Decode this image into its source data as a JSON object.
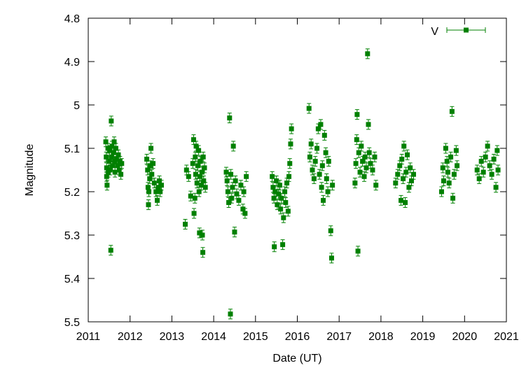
{
  "chart_data": {
    "type": "scatter",
    "xlabel": "Date (UT)",
    "ylabel": "Magnitude",
    "xlim": [
      2011,
      2021
    ],
    "ylim": [
      4.8,
      5.5
    ],
    "y_inverted": true,
    "grid": false,
    "legend_position": "top-right",
    "x_ticks": [
      "2011",
      "2012",
      "2013",
      "2014",
      "2015",
      "2016",
      "2017",
      "2018",
      "2019",
      "2020",
      "2021"
    ],
    "y_ticks": [
      "4.8",
      "4.9",
      "5",
      "5.1",
      "5.2",
      "5.3",
      "5.4",
      "5.5"
    ],
    "series": [
      {
        "name": "V",
        "color": "#008000",
        "marker": "square",
        "error_bars": true,
        "points": [
          {
            "x": 2011.42,
            "y": 5.085
          },
          {
            "x": 2011.43,
            "y": 5.12
          },
          {
            "x": 2011.44,
            "y": 5.145
          },
          {
            "x": 2011.44,
            "y": 5.165
          },
          {
            "x": 2011.45,
            "y": 5.185
          },
          {
            "x": 2011.47,
            "y": 5.1
          },
          {
            "x": 2011.48,
            "y": 5.155
          },
          {
            "x": 2011.5,
            "y": 5.13
          },
          {
            "x": 2011.51,
            "y": 5.105
          },
          {
            "x": 2011.52,
            "y": 5.15
          },
          {
            "x": 2011.54,
            "y": 5.335
          },
          {
            "x": 2011.55,
            "y": 5.037
          },
          {
            "x": 2011.56,
            "y": 5.12
          },
          {
            "x": 2011.57,
            "y": 5.095
          },
          {
            "x": 2011.58,
            "y": 5.14
          },
          {
            "x": 2011.6,
            "y": 5.11
          },
          {
            "x": 2011.62,
            "y": 5.085
          },
          {
            "x": 2011.63,
            "y": 5.13
          },
          {
            "x": 2011.64,
            "y": 5.155
          },
          {
            "x": 2011.66,
            "y": 5.1
          },
          {
            "x": 2011.68,
            "y": 5.125
          },
          {
            "x": 2011.7,
            "y": 5.14
          },
          {
            "x": 2011.72,
            "y": 5.115
          },
          {
            "x": 2011.74,
            "y": 5.15
          },
          {
            "x": 2011.76,
            "y": 5.13
          },
          {
            "x": 2011.78,
            "y": 5.16
          },
          {
            "x": 2011.8,
            "y": 5.135
          },
          {
            "x": 2012.4,
            "y": 5.125
          },
          {
            "x": 2012.42,
            "y": 5.15
          },
          {
            "x": 2012.43,
            "y": 5.19
          },
          {
            "x": 2012.44,
            "y": 5.23
          },
          {
            "x": 2012.45,
            "y": 5.2
          },
          {
            "x": 2012.47,
            "y": 5.17
          },
          {
            "x": 2012.48,
            "y": 5.14
          },
          {
            "x": 2012.5,
            "y": 5.1
          },
          {
            "x": 2012.52,
            "y": 5.16
          },
          {
            "x": 2012.55,
            "y": 5.135
          },
          {
            "x": 2012.58,
            "y": 5.18
          },
          {
            "x": 2012.62,
            "y": 5.2
          },
          {
            "x": 2012.65,
            "y": 5.22
          },
          {
            "x": 2012.68,
            "y": 5.19
          },
          {
            "x": 2012.7,
            "y": 5.175
          },
          {
            "x": 2012.72,
            "y": 5.2
          },
          {
            "x": 2012.75,
            "y": 5.185
          },
          {
            "x": 2013.32,
            "y": 5.275
          },
          {
            "x": 2013.35,
            "y": 5.15
          },
          {
            "x": 2013.4,
            "y": 5.165
          },
          {
            "x": 2013.45,
            "y": 5.21
          },
          {
            "x": 2013.5,
            "y": 5.135
          },
          {
            "x": 2013.52,
            "y": 5.08
          },
          {
            "x": 2013.53,
            "y": 5.25
          },
          {
            "x": 2013.55,
            "y": 5.215
          },
          {
            "x": 2013.56,
            "y": 5.12
          },
          {
            "x": 2013.57,
            "y": 5.16
          },
          {
            "x": 2013.58,
            "y": 5.095
          },
          {
            "x": 2013.6,
            "y": 5.18
          },
          {
            "x": 2013.62,
            "y": 5.14
          },
          {
            "x": 2013.64,
            "y": 5.105
          },
          {
            "x": 2013.65,
            "y": 5.2
          },
          {
            "x": 2013.66,
            "y": 5.295
          },
          {
            "x": 2013.67,
            "y": 5.165
          },
          {
            "x": 2013.68,
            "y": 5.13
          },
          {
            "x": 2013.7,
            "y": 5.185
          },
          {
            "x": 2013.72,
            "y": 5.155
          },
          {
            "x": 2013.73,
            "y": 5.3
          },
          {
            "x": 2013.74,
            "y": 5.34
          },
          {
            "x": 2013.75,
            "y": 5.12
          },
          {
            "x": 2013.76,
            "y": 5.175
          },
          {
            "x": 2013.78,
            "y": 5.145
          },
          {
            "x": 2013.8,
            "y": 5.19
          },
          {
            "x": 2014.3,
            "y": 5.155
          },
          {
            "x": 2014.32,
            "y": 5.175
          },
          {
            "x": 2014.34,
            "y": 5.2
          },
          {
            "x": 2014.36,
            "y": 5.225
          },
          {
            "x": 2014.38,
            "y": 5.03
          },
          {
            "x": 2014.4,
            "y": 5.482
          },
          {
            "x": 2014.41,
            "y": 5.16
          },
          {
            "x": 2014.43,
            "y": 5.215
          },
          {
            "x": 2014.45,
            "y": 5.19
          },
          {
            "x": 2014.47,
            "y": 5.095
          },
          {
            "x": 2014.5,
            "y": 5.293
          },
          {
            "x": 2014.52,
            "y": 5.175
          },
          {
            "x": 2014.55,
            "y": 5.205
          },
          {
            "x": 2014.6,
            "y": 5.22
          },
          {
            "x": 2014.65,
            "y": 5.185
          },
          {
            "x": 2014.7,
            "y": 5.24
          },
          {
            "x": 2014.72,
            "y": 5.2
          },
          {
            "x": 2014.75,
            "y": 5.25
          },
          {
            "x": 2014.78,
            "y": 5.165
          },
          {
            "x": 2015.4,
            "y": 5.165
          },
          {
            "x": 2015.42,
            "y": 5.19
          },
          {
            "x": 2015.44,
            "y": 5.215
          },
          {
            "x": 2015.45,
            "y": 5.327
          },
          {
            "x": 2015.47,
            "y": 5.2
          },
          {
            "x": 2015.5,
            "y": 5.175
          },
          {
            "x": 2015.52,
            "y": 5.23
          },
          {
            "x": 2015.55,
            "y": 5.205
          },
          {
            "x": 2015.58,
            "y": 5.185
          },
          {
            "x": 2015.6,
            "y": 5.24
          },
          {
            "x": 2015.62,
            "y": 5.215
          },
          {
            "x": 2015.65,
            "y": 5.322
          },
          {
            "x": 2015.67,
            "y": 5.26
          },
          {
            "x": 2015.7,
            "y": 5.2
          },
          {
            "x": 2015.72,
            "y": 5.225
          },
          {
            "x": 2015.75,
            "y": 5.18
          },
          {
            "x": 2015.78,
            "y": 5.245
          },
          {
            "x": 2015.8,
            "y": 5.165
          },
          {
            "x": 2015.82,
            "y": 5.135
          },
          {
            "x": 2015.84,
            "y": 5.09
          },
          {
            "x": 2015.86,
            "y": 5.055
          },
          {
            "x": 2016.28,
            "y": 5.008
          },
          {
            "x": 2016.3,
            "y": 5.12
          },
          {
            "x": 2016.33,
            "y": 5.09
          },
          {
            "x": 2016.36,
            "y": 5.15
          },
          {
            "x": 2016.4,
            "y": 5.17
          },
          {
            "x": 2016.43,
            "y": 5.13
          },
          {
            "x": 2016.47,
            "y": 5.1
          },
          {
            "x": 2016.5,
            "y": 5.055
          },
          {
            "x": 2016.53,
            "y": 5.16
          },
          {
            "x": 2016.56,
            "y": 5.045
          },
          {
            "x": 2016.58,
            "y": 5.19
          },
          {
            "x": 2016.6,
            "y": 5.14
          },
          {
            "x": 2016.62,
            "y": 5.22
          },
          {
            "x": 2016.65,
            "y": 5.07
          },
          {
            "x": 2016.68,
            "y": 5.11
          },
          {
            "x": 2016.7,
            "y": 5.17
          },
          {
            "x": 2016.73,
            "y": 5.2
          },
          {
            "x": 2016.75,
            "y": 5.13
          },
          {
            "x": 2016.8,
            "y": 5.29
          },
          {
            "x": 2016.82,
            "y": 5.353
          },
          {
            "x": 2016.84,
            "y": 5.185
          },
          {
            "x": 2017.38,
            "y": 5.18
          },
          {
            "x": 2017.4,
            "y": 5.135
          },
          {
            "x": 2017.42,
            "y": 5.08
          },
          {
            "x": 2017.43,
            "y": 5.022
          },
          {
            "x": 2017.45,
            "y": 5.337
          },
          {
            "x": 2017.47,
            "y": 5.11
          },
          {
            "x": 2017.5,
            "y": 5.155
          },
          {
            "x": 2017.53,
            "y": 5.095
          },
          {
            "x": 2017.56,
            "y": 5.13
          },
          {
            "x": 2017.6,
            "y": 5.165
          },
          {
            "x": 2017.62,
            "y": 5.12
          },
          {
            "x": 2017.65,
            "y": 5.145
          },
          {
            "x": 2017.68,
            "y": 4.882
          },
          {
            "x": 2017.7,
            "y": 5.045
          },
          {
            "x": 2017.72,
            "y": 5.11
          },
          {
            "x": 2017.75,
            "y": 5.135
          },
          {
            "x": 2017.8,
            "y": 5.15
          },
          {
            "x": 2017.85,
            "y": 5.12
          },
          {
            "x": 2017.88,
            "y": 5.185
          },
          {
            "x": 2018.35,
            "y": 5.18
          },
          {
            "x": 2018.4,
            "y": 5.16
          },
          {
            "x": 2018.45,
            "y": 5.14
          },
          {
            "x": 2018.48,
            "y": 5.22
          },
          {
            "x": 2018.5,
            "y": 5.125
          },
          {
            "x": 2018.53,
            "y": 5.17
          },
          {
            "x": 2018.55,
            "y": 5.095
          },
          {
            "x": 2018.58,
            "y": 5.225
          },
          {
            "x": 2018.6,
            "y": 5.155
          },
          {
            "x": 2018.63,
            "y": 5.115
          },
          {
            "x": 2018.67,
            "y": 5.19
          },
          {
            "x": 2018.7,
            "y": 5.145
          },
          {
            "x": 2018.73,
            "y": 5.175
          },
          {
            "x": 2018.78,
            "y": 5.16
          },
          {
            "x": 2019.45,
            "y": 5.2
          },
          {
            "x": 2019.48,
            "y": 5.145
          },
          {
            "x": 2019.5,
            "y": 5.175
          },
          {
            "x": 2019.55,
            "y": 5.1
          },
          {
            "x": 2019.58,
            "y": 5.13
          },
          {
            "x": 2019.6,
            "y": 5.155
          },
          {
            "x": 2019.63,
            "y": 5.18
          },
          {
            "x": 2019.67,
            "y": 5.12
          },
          {
            "x": 2019.7,
            "y": 5.015
          },
          {
            "x": 2019.72,
            "y": 5.215
          },
          {
            "x": 2019.75,
            "y": 5.16
          },
          {
            "x": 2019.8,
            "y": 5.105
          },
          {
            "x": 2019.82,
            "y": 5.14
          },
          {
            "x": 2020.3,
            "y": 5.15
          },
          {
            "x": 2020.35,
            "y": 5.17
          },
          {
            "x": 2020.4,
            "y": 5.13
          },
          {
            "x": 2020.45,
            "y": 5.155
          },
          {
            "x": 2020.5,
            "y": 5.12
          },
          {
            "x": 2020.55,
            "y": 5.095
          },
          {
            "x": 2020.6,
            "y": 5.14
          },
          {
            "x": 2020.65,
            "y": 5.16
          },
          {
            "x": 2020.7,
            "y": 5.125
          },
          {
            "x": 2020.75,
            "y": 5.19
          },
          {
            "x": 2020.78,
            "y": 5.105
          },
          {
            "x": 2020.8,
            "y": 5.15
          }
        ]
      }
    ]
  }
}
